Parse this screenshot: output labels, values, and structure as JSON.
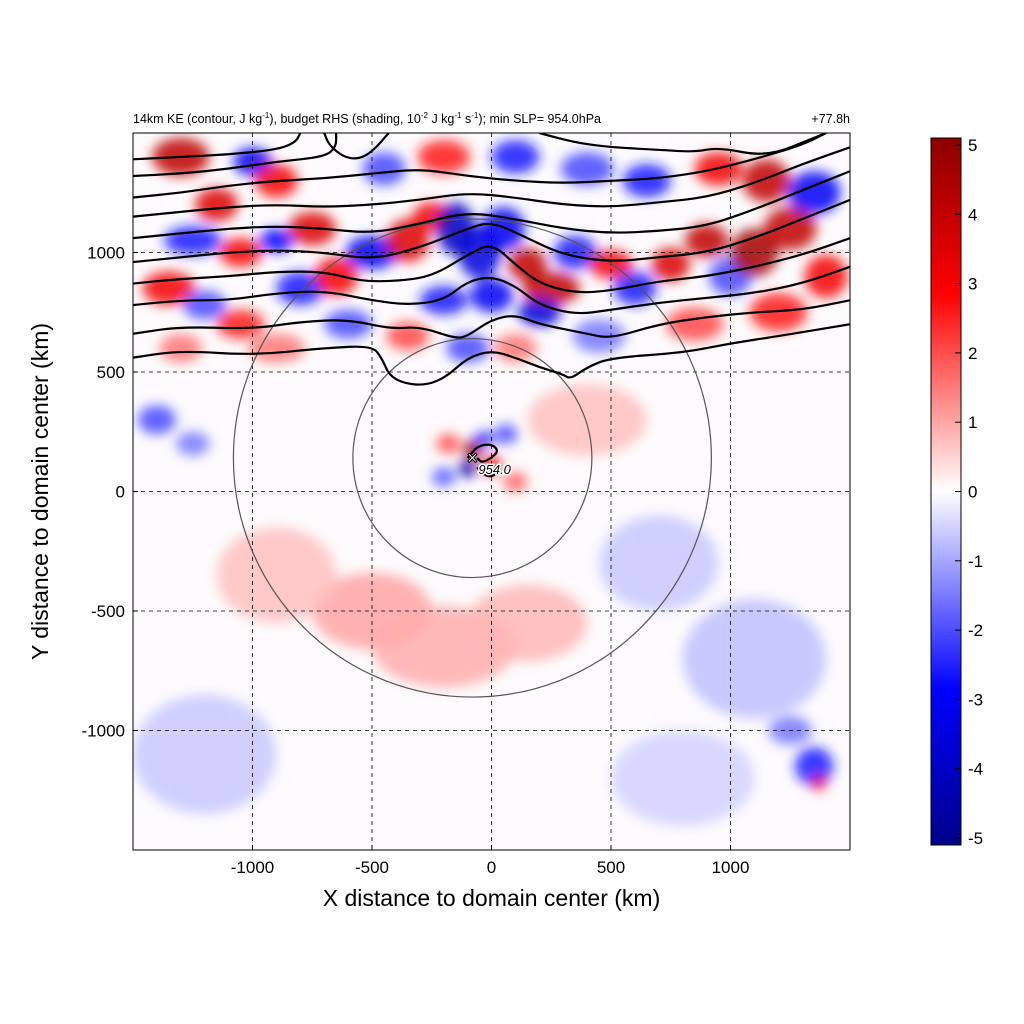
{
  "chart_data": {
    "type": "heatmap",
    "title_parts": {
      "prefix": "14km KE (contour, J kg",
      "exp1": "-1",
      "mid1": "), budget RHS (shading, 10",
      "exp2": "-2",
      "mid2": " J kg",
      "exp3": "-1",
      "mid3": " s",
      "exp4": "-1",
      "suffix": "); min SLP= 954.0hPa"
    },
    "time_label": "+77.8h",
    "xlabel": "X distance to domain center (km)",
    "ylabel": "Y distance to domain center (km)",
    "xlim": [
      -1500,
      1500
    ],
    "ylim": [
      -1500,
      1500
    ],
    "xticks": [
      -1000,
      -500,
      0,
      500,
      1000
    ],
    "yticks": [
      -1000,
      -500,
      0,
      500,
      1000
    ],
    "grid": true,
    "colorbar": {
      "range": [
        -5,
        5
      ],
      "ticks": [
        5,
        4,
        3,
        2,
        1,
        0,
        -1,
        -2,
        -3,
        -4,
        -5
      ],
      "colors": [
        "#00008b",
        "#0000ff",
        "#ffffff",
        "#ff0000",
        "#8b0000"
      ]
    },
    "storm_center": {
      "x": -80,
      "y": 140,
      "marker": "×",
      "min_slp_label": "954.0"
    },
    "radius_circles_km": [
      500,
      1000
    ],
    "ke_contours": [
      [
        [
          -1500,
          560
        ],
        [
          -1300,
          590
        ],
        [
          -1000,
          570
        ],
        [
          -700,
          600
        ],
        [
          -500,
          610
        ],
        [
          -460,
          560
        ],
        [
          -420,
          470
        ],
        [
          -300,
          440
        ],
        [
          -200,
          470
        ],
        [
          -100,
          560
        ],
        [
          0,
          590
        ],
        [
          100,
          560
        ],
        [
          200,
          520
        ],
        [
          300,
          490
        ],
        [
          330,
          470
        ],
        [
          400,
          520
        ],
        [
          500,
          560
        ],
        [
          800,
          580
        ],
        [
          1000,
          620
        ],
        [
          1200,
          650
        ],
        [
          1500,
          700
        ]
      ],
      [
        [
          -1500,
          660
        ],
        [
          -1300,
          690
        ],
        [
          -1000,
          680
        ],
        [
          -800,
          710
        ],
        [
          -600,
          720
        ],
        [
          -420,
          680
        ],
        [
          -300,
          690
        ],
        [
          -150,
          640
        ],
        [
          -100,
          650
        ],
        [
          0,
          720
        ],
        [
          100,
          740
        ],
        [
          200,
          700
        ],
        [
          400,
          660
        ],
        [
          500,
          640
        ],
        [
          700,
          700
        ],
        [
          900,
          730
        ],
        [
          1100,
          750
        ],
        [
          1300,
          760
        ],
        [
          1500,
          800
        ]
      ],
      [
        [
          -1500,
          780
        ],
        [
          -1300,
          800
        ],
        [
          -1100,
          800
        ],
        [
          -900,
          830
        ],
        [
          -700,
          840
        ],
        [
          -500,
          800
        ],
        [
          -350,
          780
        ],
        [
          -200,
          800
        ],
        [
          -100,
          880
        ],
        [
          0,
          900
        ],
        [
          100,
          860
        ],
        [
          200,
          780
        ],
        [
          350,
          740
        ],
        [
          500,
          760
        ],
        [
          700,
          790
        ],
        [
          900,
          810
        ],
        [
          1100,
          830
        ],
        [
          1300,
          870
        ],
        [
          1500,
          940
        ]
      ],
      [
        [
          -1500,
          870
        ],
        [
          -1300,
          890
        ],
        [
          -1100,
          900
        ],
        [
          -900,
          920
        ],
        [
          -700,
          920
        ],
        [
          -550,
          880
        ],
        [
          -400,
          880
        ],
        [
          -250,
          900
        ],
        [
          -100,
          990
        ],
        [
          0,
          1040
        ],
        [
          100,
          950
        ],
        [
          200,
          870
        ],
        [
          350,
          830
        ],
        [
          500,
          840
        ],
        [
          700,
          880
        ],
        [
          900,
          900
        ],
        [
          1100,
          940
        ],
        [
          1300,
          990
        ],
        [
          1500,
          1060
        ]
      ],
      [
        [
          -1500,
          960
        ],
        [
          -1300,
          980
        ],
        [
          -1100,
          1000
        ],
        [
          -900,
          1010
        ],
        [
          -700,
          1000
        ],
        [
          -500,
          970
        ],
        [
          -300,
          1020
        ],
        [
          -100,
          1100
        ],
        [
          0,
          1130
        ],
        [
          150,
          1060
        ],
        [
          300,
          990
        ],
        [
          500,
          960
        ],
        [
          700,
          980
        ],
        [
          900,
          1000
        ],
        [
          1100,
          1060
        ],
        [
          1300,
          1140
        ],
        [
          1500,
          1220
        ]
      ],
      [
        [
          -1500,
          1060
        ],
        [
          -1300,
          1080
        ],
        [
          -1100,
          1100
        ],
        [
          -900,
          1110
        ],
        [
          -700,
          1100
        ],
        [
          -500,
          1080
        ],
        [
          -300,
          1120
        ],
        [
          -100,
          1170
        ],
        [
          100,
          1140
        ],
        [
          300,
          1100
        ],
        [
          500,
          1080
        ],
        [
          700,
          1090
        ],
        [
          900,
          1110
        ],
        [
          1100,
          1180
        ],
        [
          1300,
          1260
        ],
        [
          1500,
          1340
        ]
      ],
      [
        [
          -1500,
          1150
        ],
        [
          -1300,
          1170
        ],
        [
          -1100,
          1190
        ],
        [
          -900,
          1200
        ],
        [
          -700,
          1190
        ],
        [
          -500,
          1200
        ],
        [
          -300,
          1220
        ],
        [
          -100,
          1250
        ],
        [
          100,
          1230
        ],
        [
          300,
          1200
        ],
        [
          500,
          1190
        ],
        [
          700,
          1210
        ],
        [
          900,
          1230
        ],
        [
          1100,
          1290
        ],
        [
          1300,
          1370
        ],
        [
          1500,
          1440
        ]
      ],
      [
        [
          -1500,
          1230
        ],
        [
          -1300,
          1250
        ],
        [
          -1100,
          1280
        ],
        [
          -900,
          1300
        ],
        [
          -700,
          1310
        ],
        [
          -500,
          1330
        ],
        [
          -300,
          1350
        ],
        [
          -100,
          1320
        ],
        [
          100,
          1300
        ],
        [
          300,
          1290
        ],
        [
          500,
          1300
        ],
        [
          700,
          1310
        ],
        [
          900,
          1340
        ],
        [
          1100,
          1390
        ],
        [
          1300,
          1450
        ],
        [
          1400,
          1500
        ]
      ],
      [
        [
          -1500,
          1320
        ],
        [
          -1300,
          1330
        ],
        [
          -1100,
          1350
        ],
        [
          -900,
          1380
        ],
        [
          -700,
          1400
        ],
        [
          -650,
          1440
        ],
        [
          -650,
          1500
        ]
      ],
      [
        [
          -1500,
          1390
        ],
        [
          -1300,
          1400
        ],
        [
          -1100,
          1410
        ],
        [
          -900,
          1430
        ],
        [
          -820,
          1460
        ],
        [
          -800,
          1500
        ]
      ],
      [
        [
          -700,
          1500
        ],
        [
          -680,
          1450
        ],
        [
          -620,
          1400
        ],
        [
          -560,
          1390
        ],
        [
          -500,
          1420
        ],
        [
          -430,
          1500
        ]
      ],
      [
        [
          200,
          1500
        ],
        [
          350,
          1460
        ],
        [
          500,
          1440
        ],
        [
          700,
          1430
        ],
        [
          850,
          1420
        ],
        [
          950,
          1440
        ],
        [
          1150,
          1400
        ],
        [
          1350,
          1480
        ],
        [
          1400,
          1500
        ]
      ],
      [
        [
          -100,
          140
        ],
        [
          -60,
          190
        ],
        [
          0,
          200
        ],
        [
          30,
          170
        ],
        [
          0,
          140
        ],
        [
          -40,
          120
        ],
        [
          -60,
          140
        ]
      ],
      [
        [
          -60,
          100
        ],
        [
          -20,
          60
        ],
        [
          20,
          70
        ],
        [
          40,
          90
        ]
      ]
    ],
    "anomaly_blobs": [
      [
        -1300,
        1400,
        120,
        80,
        4
      ],
      [
        -1150,
        1200,
        90,
        70,
        3.5
      ],
      [
        -1000,
        1380,
        80,
        60,
        -3
      ],
      [
        -900,
        1300,
        90,
        70,
        3
      ],
      [
        -1250,
        1050,
        120,
        60,
        -2.5
      ],
      [
        -1050,
        1000,
        90,
        60,
        3
      ],
      [
        -900,
        1050,
        70,
        50,
        -2.8
      ],
      [
        -750,
        1100,
        100,
        70,
        3.5
      ],
      [
        -1350,
        850,
        110,
        70,
        3
      ],
      [
        -1200,
        780,
        90,
        60,
        -2
      ],
      [
        -1050,
        700,
        100,
        60,
        2.5
      ],
      [
        -800,
        850,
        100,
        70,
        -2.5
      ],
      [
        -650,
        900,
        90,
        80,
        3
      ],
      [
        -500,
        1000,
        110,
        70,
        -3
      ],
      [
        -350,
        1050,
        90,
        90,
        3.5
      ],
      [
        -250,
        1150,
        80,
        60,
        3
      ],
      [
        -150,
        1100,
        80,
        110,
        -4
      ],
      [
        -50,
        1000,
        90,
        110,
        -3.5
      ],
      [
        50,
        1100,
        90,
        90,
        -3
      ],
      [
        150,
        950,
        80,
        70,
        4
      ],
      [
        250,
        850,
        120,
        70,
        4
      ],
      [
        200,
        750,
        90,
        60,
        -3.5
      ],
      [
        0,
        820,
        90,
        70,
        -3
      ],
      [
        -200,
        800,
        100,
        60,
        -2.5
      ],
      [
        -350,
        650,
        90,
        60,
        2
      ],
      [
        -600,
        700,
        100,
        60,
        -2
      ],
      [
        -900,
        600,
        120,
        60,
        1.5
      ],
      [
        -1300,
        600,
        90,
        60,
        1.5
      ],
      [
        350,
        1000,
        90,
        70,
        -2.5
      ],
      [
        500,
        950,
        90,
        60,
        3
      ],
      [
        600,
        850,
        90,
        70,
        -2.5
      ],
      [
        750,
        950,
        80,
        70,
        3.5
      ],
      [
        900,
        1050,
        90,
        70,
        4
      ],
      [
        1000,
        900,
        90,
        80,
        -2
      ],
      [
        1100,
        1000,
        100,
        100,
        4.5
      ],
      [
        1250,
        1100,
        110,
        90,
        4
      ],
      [
        1350,
        1250,
        110,
        90,
        -3
      ],
      [
        1150,
        1300,
        100,
        90,
        4
      ],
      [
        950,
        1350,
        100,
        70,
        3
      ],
      [
        650,
        1300,
        100,
        70,
        -2.5
      ],
      [
        400,
        1350,
        110,
        70,
        -2
      ],
      [
        100,
        1400,
        100,
        70,
        -2.5
      ],
      [
        -200,
        1400,
        110,
        70,
        2.5
      ],
      [
        -450,
        1350,
        90,
        70,
        -2
      ],
      [
        850,
        700,
        120,
        70,
        2
      ],
      [
        1200,
        750,
        120,
        80,
        2.5
      ],
      [
        1400,
        900,
        90,
        90,
        3
      ],
      [
        450,
        650,
        110,
        70,
        -1.5
      ],
      [
        -100,
        600,
        90,
        60,
        -2
      ],
      [
        100,
        600,
        90,
        60,
        1.5
      ],
      [
        -1400,
        300,
        80,
        60,
        -2
      ],
      [
        -1250,
        200,
        70,
        50,
        -1.5
      ],
      [
        -80,
        175,
        40,
        40,
        5
      ],
      [
        -100,
        95,
        40,
        35,
        -4.5
      ],
      [
        0,
        110,
        40,
        40,
        3
      ],
      [
        -30,
        220,
        40,
        30,
        -2.5
      ],
      [
        -180,
        200,
        50,
        40,
        2
      ],
      [
        60,
        240,
        50,
        40,
        -2
      ],
      [
        100,
        40,
        50,
        40,
        1.8
      ],
      [
        -200,
        60,
        50,
        40,
        -1.8
      ],
      [
        -500,
        -500,
        250,
        160,
        1
      ],
      [
        -200,
        -650,
        300,
        170,
        0.9
      ],
      [
        150,
        -550,
        250,
        160,
        0.8
      ],
      [
        -900,
        -350,
        250,
        200,
        0.7
      ],
      [
        700,
        -300,
        250,
        200,
        -0.6
      ],
      [
        1100,
        -700,
        300,
        250,
        -0.7
      ],
      [
        -1200,
        -1100,
        300,
        250,
        -0.6
      ],
      [
        800,
        -1200,
        300,
        200,
        -0.5
      ],
      [
        1350,
        -1150,
        80,
        80,
        -2.5
      ],
      [
        1370,
        -1220,
        30,
        30,
        3
      ],
      [
        1250,
        -1000,
        90,
        60,
        -1.5
      ],
      [
        400,
        300,
        250,
        150,
        0.7
      ]
    ]
  }
}
